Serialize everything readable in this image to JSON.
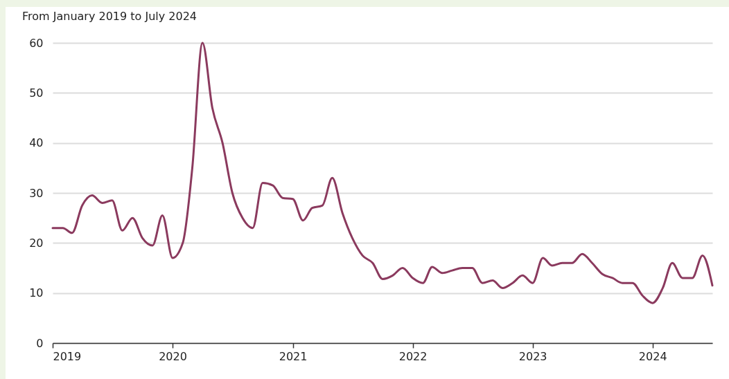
{
  "chart_data": {
    "type": "line",
    "title": "From January 2019 to July 2024",
    "x": [
      "2019-01",
      "2019-02",
      "2019-03",
      "2019-04",
      "2019-05",
      "2019-06",
      "2019-07",
      "2019-08",
      "2019-09",
      "2019-10",
      "2019-11",
      "2019-12",
      "2020-01",
      "2020-02",
      "2020-03",
      "2020-04",
      "2020-05",
      "2020-06",
      "2020-07",
      "2020-08",
      "2020-09",
      "2020-10",
      "2020-11",
      "2020-12",
      "2021-01",
      "2021-02",
      "2021-03",
      "2021-04",
      "2021-05",
      "2021-06",
      "2021-07",
      "2021-08",
      "2021-09",
      "2021-10",
      "2021-11",
      "2021-12",
      "2022-01",
      "2022-02",
      "2022-03",
      "2022-04",
      "2022-05",
      "2022-06",
      "2022-07",
      "2022-08",
      "2022-09",
      "2022-10",
      "2022-11",
      "2022-12",
      "2023-01",
      "2023-02",
      "2023-03",
      "2023-04",
      "2023-05",
      "2023-06",
      "2023-07",
      "2023-08",
      "2023-09",
      "2023-10",
      "2023-11",
      "2023-12",
      "2024-01",
      "2024-02",
      "2024-03",
      "2024-04",
      "2024-05",
      "2024-06",
      "2024-07"
    ],
    "series": [
      {
        "color": "#8b3a5e",
        "values": [
          23,
          23,
          22,
          27.5,
          29.5,
          28,
          28.5,
          22.5,
          25,
          21,
          19.5,
          25.5,
          17,
          20,
          35,
          60,
          47,
          40,
          30,
          25,
          23,
          32,
          31.5,
          29,
          28.8,
          24.5,
          27,
          27.5,
          33,
          26,
          21,
          17.5,
          16,
          12.8,
          13.5,
          15,
          13,
          12,
          15.2,
          14,
          14.5,
          15,
          15,
          12,
          12.5,
          11,
          12,
          13.5,
          12,
          17,
          15.5,
          16,
          16,
          17.8,
          16,
          13.8,
          13,
          12,
          12,
          9.5,
          8,
          11,
          16,
          13,
          13,
          17.5,
          11.5
        ]
      }
    ],
    "xlim": [
      "2019-01",
      "2024-07"
    ],
    "xticks": [
      "2019",
      "2020",
      "2021",
      "2022",
      "2023",
      "2024"
    ],
    "ylim": [
      0,
      60
    ],
    "yticks": [
      0,
      10,
      20,
      30,
      40,
      50,
      60
    ],
    "grid": "y",
    "marker": "none",
    "line_style": "solid"
  }
}
